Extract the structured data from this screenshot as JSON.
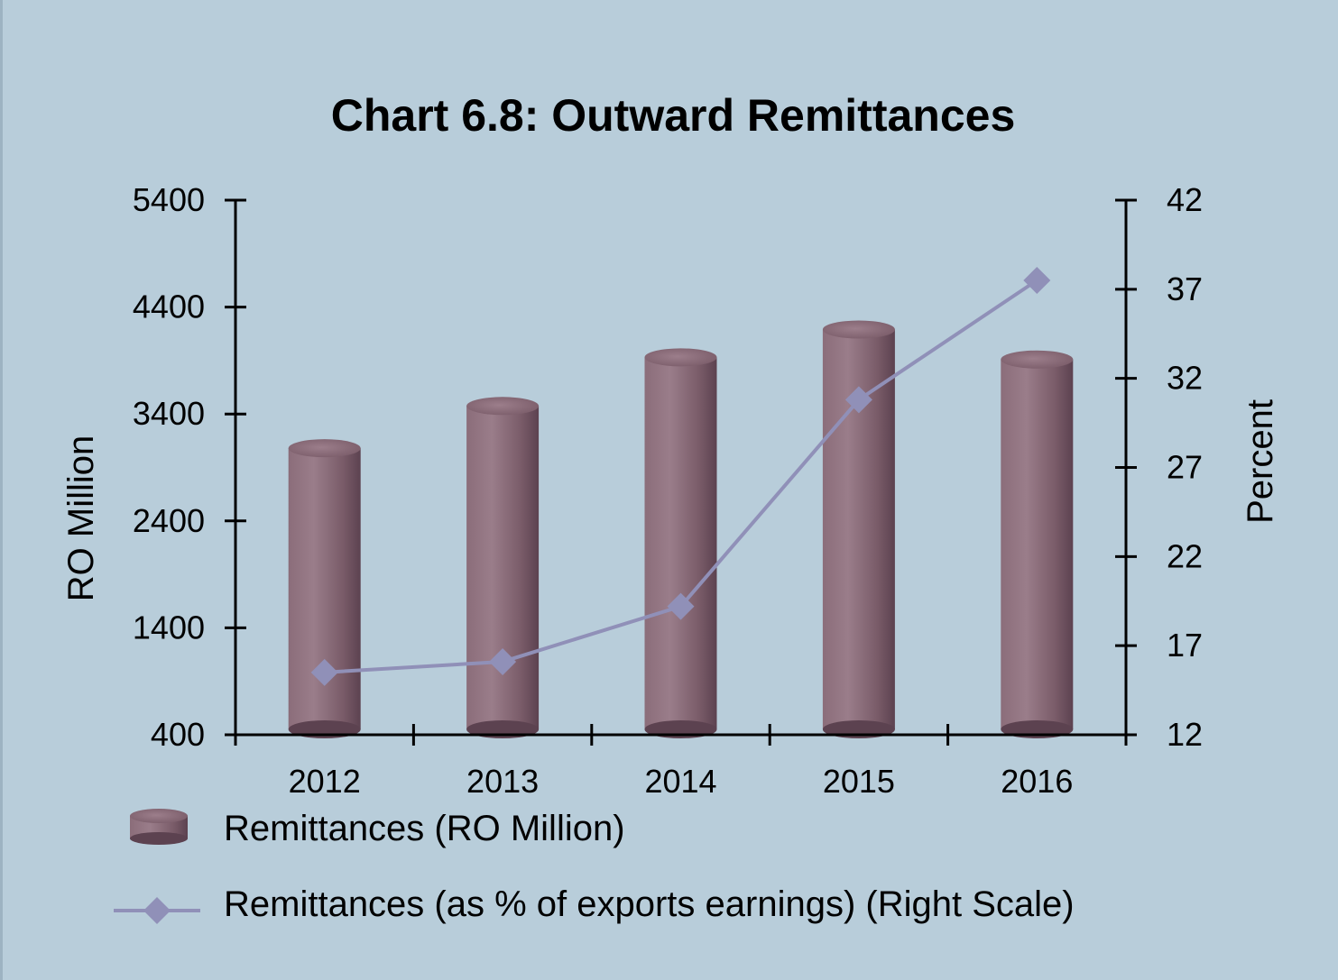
{
  "chart_data": {
    "type": "bar",
    "title": "Chart 6.8: Outward Remittances",
    "categories": [
      "2012",
      "2013",
      "2014",
      "2015",
      "2016"
    ],
    "ylabel": "RO Million",
    "y2label": "Percent",
    "ylim": [
      400,
      5400
    ],
    "yticks": [
      400,
      1400,
      2400,
      3400,
      4400,
      5400
    ],
    "y2lim": [
      12,
      42
    ],
    "y2ticks": [
      12,
      17,
      22,
      27,
      32,
      37,
      42
    ],
    "grid": false,
    "legend_position": "bottom",
    "series": [
      {
        "name": "Remittances (RO Million)",
        "type": "bar",
        "axis": "left",
        "color": "#8a6a78",
        "values": [
          3080,
          3475,
          3930,
          4190,
          3910
        ]
      },
      {
        "name": "Remittances (as % of exports earnings) (Right Scale)",
        "type": "line",
        "axis": "right",
        "color": "#9090b8",
        "marker": "diamond",
        "values": [
          15.5,
          16.1,
          19.2,
          30.8,
          37.5
        ]
      }
    ]
  }
}
